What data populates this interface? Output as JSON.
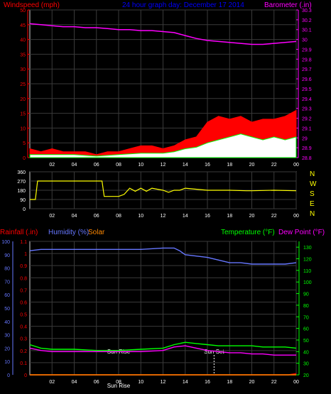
{
  "header": {
    "windspeed_label": "Windspeed (mph)",
    "title": "24 hour graph day:  December 17 2014",
    "barometer_label": "Barometer (.in)"
  },
  "time_ticks": [
    "02",
    "04",
    "06",
    "08",
    "10",
    "12",
    "14",
    "16",
    "18",
    "20",
    "22",
    "00"
  ],
  "colors": {
    "windspeed": "#ff0000",
    "gust": "#ff0000",
    "wind_avg": "#00ff00",
    "wind_fill": "#ffffff",
    "barometer": "#ff00ff",
    "direction": "#ffff00",
    "humidity": "#6677ff",
    "temperature": "#00ff00",
    "dew_point": "#ff00ff",
    "rainfall": "#ff0000",
    "solar": "#ff8800",
    "grid": "#3a3a3a",
    "text_red": "#ff0000",
    "text_blue": "#0000ff",
    "text_magenta": "#ff00ff",
    "text_yellow": "#ffff00",
    "text_green": "#00ff00"
  },
  "direction_panel": {
    "letters": [
      "N",
      "W",
      "S",
      "E",
      "N"
    ]
  },
  "bottom_panel": {
    "rainfall_label": "Rainfall (.in)",
    "humidity_label": "Humidity (%)",
    "solar_label": "Solar",
    "temperature_label": "Temperature (°F)",
    "dew_point_label": "Dew Point (°F)",
    "sunrise_label": "Sun Rise",
    "sunset_label": "Sun Set",
    "sunrise_hour": 8.0,
    "sunset_hour": 16.6
  },
  "chart_data": [
    {
      "type": "line",
      "name": "wind-barometer",
      "x_unit": "hour",
      "x_range": [
        0,
        24
      ],
      "ylim_left": [
        0,
        50
      ],
      "yticks_left": [
        0,
        5,
        10,
        15,
        20,
        25,
        30,
        35,
        40,
        45,
        50
      ],
      "ylim_right": [
        28.8,
        30.3
      ],
      "yticks_right": [
        "28.8",
        "28.9",
        "29",
        "29.1",
        "29.2",
        "29.3",
        "29.4",
        "29.5",
        "29.6",
        "29.7",
        "29.8",
        "29.9",
        "30",
        "30.1",
        "30.2",
        "30.3"
      ],
      "series": [
        {
          "name": "Barometer",
          "axis": "right",
          "x": [
            0,
            1,
            2,
            3,
            4,
            5,
            6,
            7,
            8,
            9,
            10,
            11,
            12,
            13,
            14,
            15,
            16,
            17,
            18,
            19,
            20,
            21,
            22,
            23,
            24
          ],
          "y": [
            30.16,
            30.15,
            30.14,
            30.13,
            30.13,
            30.12,
            30.12,
            30.11,
            30.1,
            30.1,
            30.09,
            30.09,
            30.08,
            30.07,
            30.04,
            30.01,
            29.99,
            29.98,
            29.97,
            29.96,
            29.95,
            29.95,
            29.96,
            29.97,
            29.98
          ]
        },
        {
          "name": "Windspeed",
          "axis": "left",
          "x": [
            0,
            1,
            2,
            3,
            4,
            5,
            6,
            7,
            8,
            9,
            10,
            11,
            12,
            13,
            14,
            15,
            16,
            17,
            18,
            19,
            20,
            21,
            22,
            23,
            24
          ],
          "y": [
            3,
            2,
            3,
            2,
            2,
            2,
            1,
            2,
            2,
            3,
            4,
            4,
            3,
            4,
            6,
            7,
            12,
            14,
            13,
            14,
            12,
            13,
            13,
            14,
            16
          ]
        },
        {
          "name": "Wind Average",
          "axis": "left",
          "x": [
            0,
            2,
            4,
            6,
            8,
            10,
            12,
            13,
            14,
            15,
            16,
            17,
            18,
            19,
            20,
            21,
            22,
            23,
            24
          ],
          "y": [
            1,
            1,
            1,
            0.5,
            1,
            1.5,
            1.5,
            2,
            3,
            3.5,
            5,
            6,
            7,
            8,
            7,
            6,
            7,
            6,
            7
          ]
        }
      ]
    },
    {
      "type": "line",
      "name": "wind-direction",
      "x_unit": "hour",
      "x_range": [
        0,
        24
      ],
      "ylim": [
        0,
        360
      ],
      "yticks": [
        0,
        90,
        180,
        270,
        360
      ],
      "series": [
        {
          "name": "Wind Direction",
          "x": [
            0,
            0.5,
            0.7,
            6.5,
            6.7,
            8.0,
            8.5,
            9.0,
            9.5,
            10.0,
            10.5,
            11.0,
            12.0,
            12.5,
            13.0,
            13.5,
            14.0,
            16.0,
            18.0,
            19.5,
            20.0,
            22.0,
            24.0
          ],
          "y": [
            90,
            90,
            270,
            270,
            120,
            120,
            140,
            200,
            170,
            200,
            170,
            200,
            180,
            160,
            180,
            180,
            200,
            180,
            180,
            175,
            175,
            180,
            175
          ]
        }
      ]
    },
    {
      "type": "line",
      "name": "rain-humidity-temperature",
      "x_unit": "hour",
      "x_range": [
        0,
        24
      ],
      "ylim_humidity": [
        0,
        100
      ],
      "yticks_humidity": [
        0,
        10,
        20,
        30,
        40,
        50,
        60,
        70,
        80,
        90,
        100
      ],
      "ylim_rain": [
        0,
        1.1
      ],
      "yticks_rain": [
        "0",
        "0.1",
        "0.2",
        "0.3",
        "0.4",
        "0.5",
        "0.6",
        "0.7",
        "0.8",
        "0.9",
        "1",
        "1.1"
      ],
      "ylim_temperature": [
        20,
        135
      ],
      "yticks_temperature": [
        20,
        30,
        40,
        50,
        60,
        70,
        80,
        90,
        100,
        110,
        120,
        130
      ],
      "series": [
        {
          "name": "Humidity",
          "axis": "humidity",
          "x": [
            0,
            1,
            2,
            4,
            6,
            8,
            10,
            12,
            13,
            13.5,
            14,
            15,
            16,
            17,
            18,
            19,
            20,
            21,
            22,
            23,
            24
          ],
          "y": [
            93,
            94,
            94,
            94,
            94,
            94,
            94,
            95,
            95,
            93,
            90,
            89,
            88,
            86,
            84,
            84,
            83,
            83,
            83,
            83,
            84
          ]
        },
        {
          "name": "Temperature",
          "axis": "temperature",
          "x": [
            0,
            1,
            2,
            4,
            6,
            8,
            10,
            12,
            13,
            14,
            15,
            16,
            17,
            18,
            19,
            20,
            21,
            22,
            23,
            24
          ],
          "y": [
            46,
            43,
            42,
            42,
            41,
            41,
            42,
            43,
            46,
            48,
            47,
            46,
            45,
            45,
            45,
            45,
            44,
            44,
            44,
            43
          ]
        },
        {
          "name": "Dew Point",
          "axis": "temperature",
          "x": [
            0,
            1,
            2,
            4,
            6,
            8,
            10,
            12,
            13,
            14,
            15,
            16,
            17,
            18,
            19,
            20,
            21,
            22,
            23,
            24
          ],
          "y": [
            43,
            41,
            40,
            40,
            40,
            40,
            40,
            41,
            44,
            45,
            43,
            41,
            40,
            39,
            39,
            38,
            38,
            37,
            37,
            37
          ]
        },
        {
          "name": "Rainfall",
          "axis": "rain",
          "x": [
            0,
            23.3,
            24
          ],
          "y": [
            0,
            0,
            0.01
          ]
        },
        {
          "name": "Solar",
          "axis": "humidity",
          "x": [
            0,
            24
          ],
          "y": [
            0,
            0
          ]
        }
      ]
    }
  ]
}
